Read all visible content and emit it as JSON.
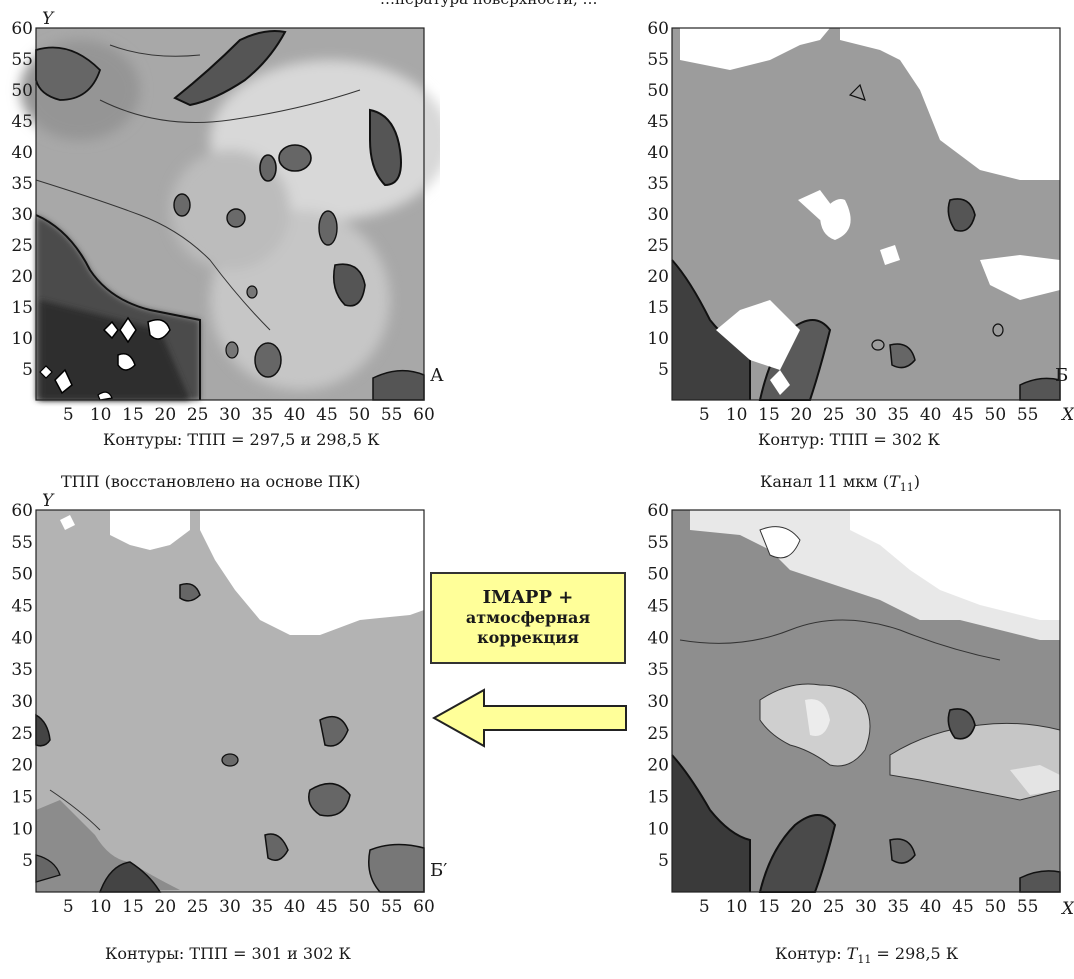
{
  "top_header": "…пература поверхности, …",
  "axis_label_y": "Y",
  "axis_label_x": "X",
  "panels": {
    "A": {
      "letter": "А",
      "caption": "Контуры: ТПП = 297,5 и 298,5 К",
      "xticks": [
        "5",
        "10",
        "15",
        "20",
        "25",
        "30",
        "35",
        "40",
        "45",
        "50",
        "55",
        "60"
      ],
      "yticks": [
        "60",
        "55",
        "50",
        "45",
        "40",
        "35",
        "30",
        "25",
        "20",
        "15",
        "10",
        "5"
      ]
    },
    "B": {
      "letter": "Б",
      "caption": "Контур: ТПП = 302 К",
      "xticks": [
        "5",
        "10",
        "15",
        "20",
        "25",
        "30",
        "35",
        "40",
        "45",
        "50",
        "55"
      ],
      "yticks": [
        "60",
        "55",
        "50",
        "45",
        "40",
        "35",
        "30",
        "25",
        "20",
        "15",
        "10",
        "5"
      ]
    },
    "Bprime": {
      "title": "ТПП (восстановлено на основе ПК)",
      "letter": "Б′",
      "caption": "Контуры: ТПП = 301 и 302 К",
      "xticks": [
        "5",
        "10",
        "15",
        "20",
        "25",
        "30",
        "35",
        "40",
        "45",
        "50",
        "55",
        "60"
      ],
      "yticks": [
        "60",
        "55",
        "50",
        "45",
        "40",
        "35",
        "30",
        "25",
        "20",
        "15",
        "10",
        "5"
      ]
    },
    "T11": {
      "title_prefix": "Канал 11 мкм (",
      "title_sym": "T",
      "title_sub": "11",
      "title_suffix": ")",
      "caption_prefix": "Контур: ",
      "caption_sym": "T",
      "caption_sub": "11",
      "caption_suffix": " = 298,5 К",
      "xticks": [
        "5",
        "10",
        "15",
        "20",
        "25",
        "30",
        "35",
        "40",
        "45",
        "50",
        "55"
      ],
      "yticks": [
        "60",
        "55",
        "50",
        "45",
        "40",
        "35",
        "30",
        "25",
        "20",
        "15",
        "10",
        "5"
      ]
    }
  },
  "callout": {
    "line1": "IMAPP +",
    "line2": "атмосферная",
    "line3": "коррекция"
  }
}
